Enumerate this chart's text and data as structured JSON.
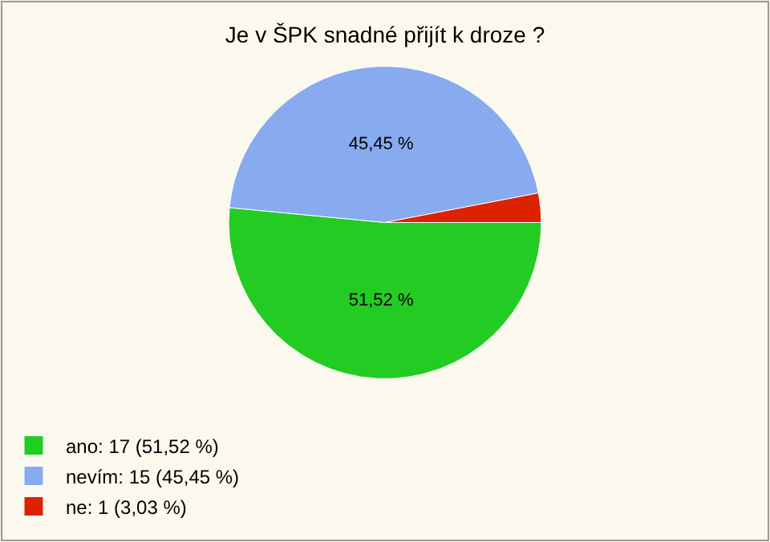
{
  "chart_data": {
    "type": "pie",
    "title": "Je v ŠPK snadné přijít k droze ?",
    "categories": [
      "ano: 17 (51,52 %)",
      "nevím: 15 (45,45 %)",
      "ne: 1 (3,03 %)"
    ],
    "values": [
      51.52,
      45.45,
      3.03
    ],
    "colors": [
      "#22cc22",
      "#88aaee",
      "#dd2200"
    ],
    "value_labels": [
      "51,52 %",
      "45,45 %",
      null
    ],
    "legend": "bottom left"
  }
}
